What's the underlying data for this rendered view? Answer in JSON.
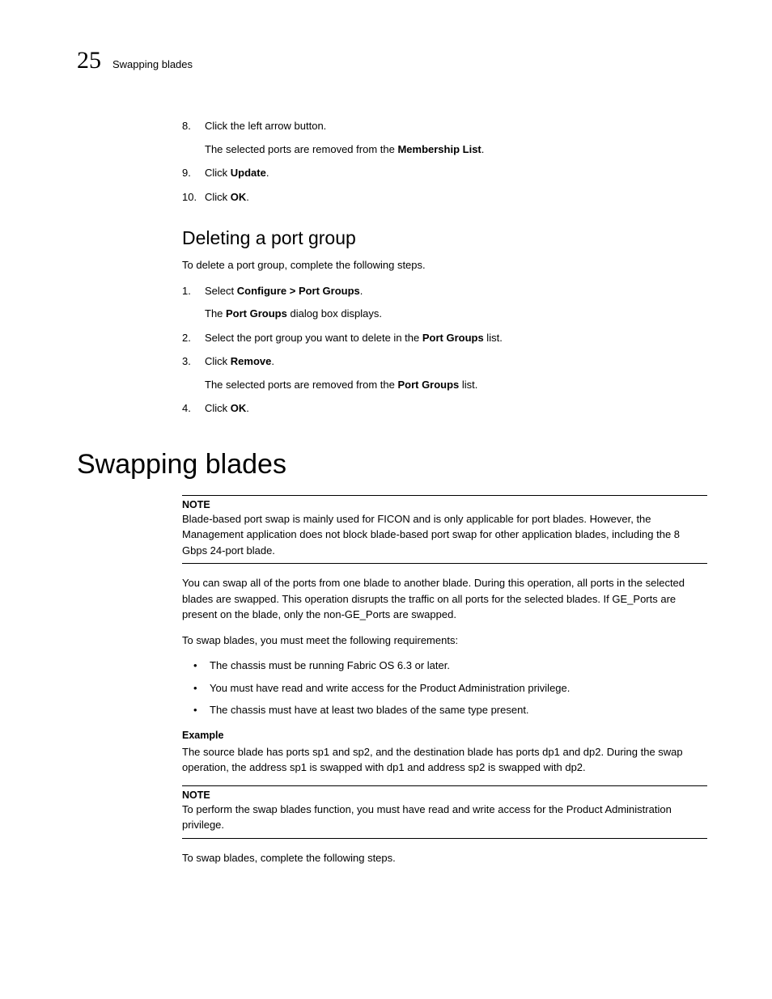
{
  "header": {
    "chapter_number": "25",
    "running_head": "Swapping blades"
  },
  "steps_a": [
    {
      "n": "8.",
      "text": "Click the left arrow button.",
      "sub": "The selected ports are removed from the ",
      "sub_bold": "Membership List",
      "sub_tail": "."
    },
    {
      "n": "9.",
      "text_pre": "Click ",
      "text_bold": "Update",
      "text_post": "."
    },
    {
      "n": "10.",
      "text_pre": "Click ",
      "text_bold": "OK",
      "text_post": "."
    }
  ],
  "h2_delete": "Deleting a port group",
  "delete_intro": "To delete a port group, complete the following steps.",
  "steps_b": [
    {
      "n": "1.",
      "text_pre": "Select ",
      "text_bold": "Configure > Port Groups",
      "text_post": ".",
      "sub_pre": "The ",
      "sub_bold": "Port Groups",
      "sub_post": " dialog box displays."
    },
    {
      "n": "2.",
      "text_pre": "Select the port group you want to delete in the ",
      "text_bold": "Port Groups",
      "text_post": " list."
    },
    {
      "n": "3.",
      "text_pre": "Click ",
      "text_bold": "Remove",
      "text_post": ".",
      "sub_pre": "The selected ports are removed from the ",
      "sub_bold": "Port Groups",
      "sub_post": " list."
    },
    {
      "n": "4.",
      "text_pre": "Click ",
      "text_bold": "OK",
      "text_post": "."
    }
  ],
  "h1_swap": "Swapping blades",
  "note1": {
    "title": "NOTE",
    "body": "Blade-based port swap is mainly used for FICON and is only applicable for port blades. However, the Management application does not block blade-based port swap for other application blades, including the 8 Gbps 24-port blade."
  },
  "swap_para1": "You can swap all of the ports from one blade to another blade. During this operation, all ports in the selected blades are swapped. This operation disrupts the traffic on all ports for the selected blades. If GE_Ports are present on the blade, only the non-GE_Ports are swapped.",
  "swap_para2": "To swap blades, you must meet the following requirements:",
  "requirements": [
    "The chassis must be running Fabric OS 6.3 or later.",
    "You must have read and write access for the Product Administration privilege.",
    "The chassis must have at least two blades of the same type present."
  ],
  "example": {
    "label": "Example",
    "body": "The source blade has ports sp1 and sp2, and the destination blade has ports dp1 and dp2. During the swap operation, the address sp1 is swapped with dp1 and address sp2 is swapped with dp2."
  },
  "note2": {
    "title": "NOTE",
    "body": "To perform the swap blades function, you must have read and write access for the Product Administration privilege."
  },
  "swap_steps_intro": "To swap blades, complete the following steps."
}
